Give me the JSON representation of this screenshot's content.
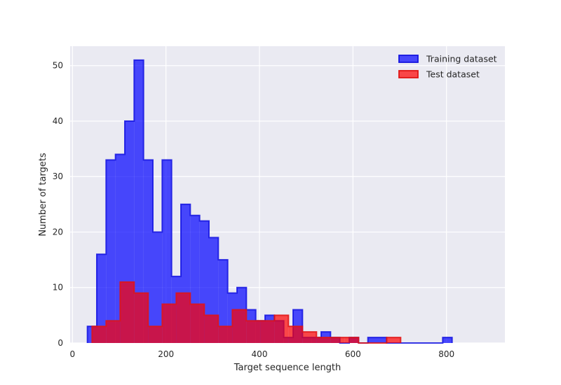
{
  "chart_data": {
    "type": "histogram",
    "title": "",
    "xlabel": "Target sequence length",
    "ylabel": "Number of targets",
    "xlim": [
      -5,
      925
    ],
    "ylim": [
      0,
      53.5
    ],
    "xticks": [
      0,
      200,
      400,
      600,
      800
    ],
    "yticks": [
      0,
      10,
      20,
      30,
      40,
      50
    ],
    "grid": true,
    "legend_position": "top-right",
    "series": [
      {
        "name": "Training dataset",
        "fill": "#0000ff",
        "edge": "#1414e0",
        "fill_opacity": 0.7,
        "bin_start": 32,
        "bin_width": 20,
        "counts": [
          3,
          16,
          33,
          34,
          40,
          51,
          33,
          20,
          33,
          12,
          25,
          23,
          22,
          19,
          15,
          9,
          10,
          6,
          4,
          5,
          4,
          1,
          6,
          1,
          1,
          2,
          1,
          0,
          1,
          0,
          1,
          1,
          0,
          0,
          0,
          0,
          0,
          0,
          1
        ]
      },
      {
        "name": "Test dataset",
        "fill": "#ff0000",
        "edge": "#e01414",
        "fill_opacity": 0.7,
        "bin_start": 42,
        "bin_width": 30,
        "counts": [
          3,
          4,
          11,
          9,
          3,
          7,
          9,
          7,
          5,
          3,
          6,
          4,
          4,
          5,
          3,
          2,
          1,
          1,
          1,
          0,
          0,
          1
        ]
      }
    ]
  }
}
